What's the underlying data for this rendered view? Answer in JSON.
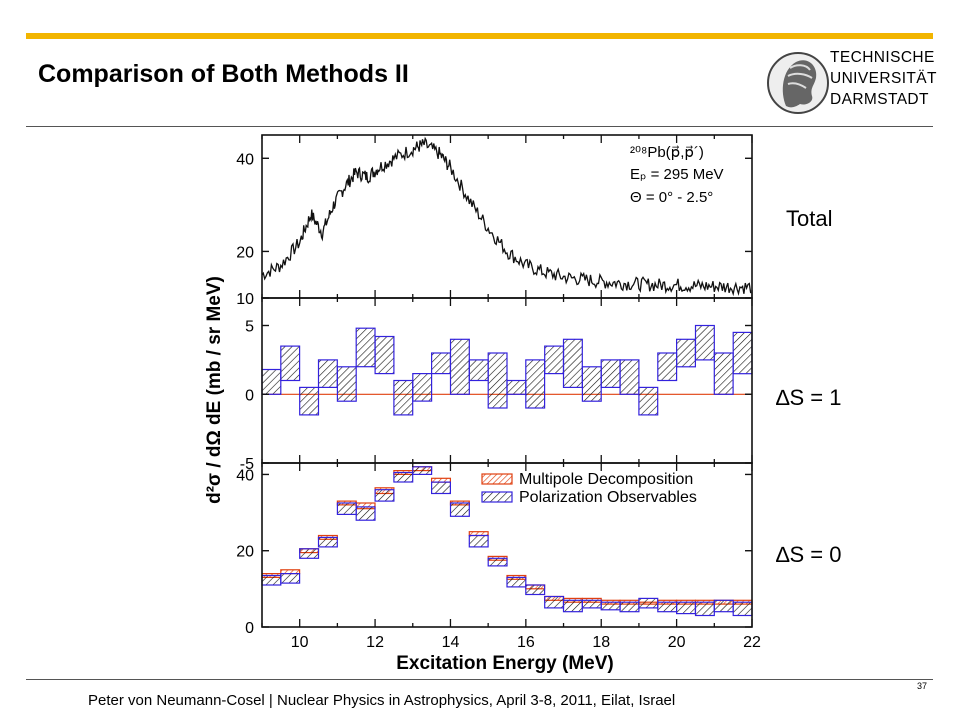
{
  "slide": {
    "title": "Comparison of Both Methods II",
    "footer": "Peter von Neumann-Cosel | Nuclear Physics in Astrophysics, April 3-8, 2011, Eilat, Israel",
    "page_number": "37",
    "accent_color": "#f2b500"
  },
  "logo": {
    "line1": "TECHNISCHE",
    "line2": "UNIVERSITÄT",
    "line3": "DARMSTADT"
  },
  "labels": {
    "total": "Total",
    "ds1": "∆S = 1",
    "ds0": "∆S = 0"
  },
  "figure": {
    "ylabel": "d²σ / dΩ dE (mb / sr MeV)",
    "xlabel": "Excitation Energy (MeV)",
    "reaction": "²⁰⁸Pb(p⃗,p⃗´)",
    "energy": "Eₚ = 295 MeV",
    "angle": "Θ = 0° - 2.5°",
    "legend": [
      "Multipole Decomposition",
      "Polarization Observables"
    ]
  },
  "chart_data": [
    {
      "type": "line",
      "panel": "Total",
      "x_range": [
        9,
        22
      ],
      "ylim": [
        10,
        45
      ],
      "y_ticks": [
        10,
        20,
        40
      ],
      "x": [
        9.0,
        9.5,
        10.0,
        10.3,
        10.6,
        10.9,
        11.2,
        11.5,
        11.8,
        12.1,
        12.5,
        13.0,
        13.3,
        13.7,
        14.0,
        14.5,
        15.0,
        15.5,
        16.0,
        16.5,
        17.0,
        17.5,
        18.0,
        18.5,
        19.0,
        19.5,
        20.0,
        20.5,
        21.0,
        21.5,
        22.0
      ],
      "y": [
        15,
        17,
        22,
        28,
        24,
        30,
        34,
        37,
        36,
        38,
        40,
        42,
        43,
        41,
        38,
        31,
        25,
        20,
        17,
        15.5,
        14.5,
        14,
        13.5,
        13.2,
        13,
        12.8,
        12.8,
        12.6,
        12.5,
        12.4,
        12.3
      ]
    },
    {
      "type": "bar",
      "panel": "∆S = 1",
      "x_range": [
        9,
        22
      ],
      "ylim": [
        -5,
        7
      ],
      "y_ticks": [
        -5,
        0,
        5
      ],
      "bin_edges": [
        9.0,
        9.5,
        10.0,
        10.5,
        11.0,
        11.5,
        12.0,
        12.5,
        13.0,
        13.5,
        14.0,
        14.5,
        15.0,
        15.5,
        16.0,
        16.5,
        17.0,
        17.5,
        18.0,
        18.5,
        19.0,
        19.5,
        20.0,
        20.5,
        21.0,
        21.5,
        22.0
      ],
      "series": [
        {
          "name": "Multipole Decomposition",
          "values": [
            0.0,
            0.0,
            0.0,
            0.0,
            0.0,
            0.0,
            0.0,
            0.0,
            0.0,
            0.0,
            0.0,
            0.0,
            0.0,
            0.0,
            0.0,
            0.0,
            0.0,
            0.0,
            0.0,
            0.0,
            0.0,
            0.0,
            0.0,
            0.0,
            0.0,
            0.0
          ]
        },
        {
          "name": "Polarization Observables",
          "lower": [
            0.0,
            1.0,
            -1.5,
            0.5,
            -0.5,
            2.0,
            1.5,
            -1.5,
            -0.5,
            1.5,
            0.0,
            1.0,
            -1.0,
            0.0,
            -1.0,
            1.5,
            0.5,
            -0.5,
            0.5,
            0.0,
            -1.5,
            1.0,
            2.0,
            2.5,
            0.0,
            1.5
          ],
          "upper": [
            1.8,
            3.5,
            0.5,
            2.5,
            2.0,
            4.8,
            4.2,
            1.0,
            1.5,
            3.0,
            4.0,
            2.5,
            3.0,
            1.0,
            2.5,
            3.5,
            4.0,
            2.0,
            2.5,
            2.5,
            0.5,
            3.0,
            4.0,
            5.0,
            3.0,
            4.5
          ]
        }
      ]
    },
    {
      "type": "bar",
      "panel": "∆S = 0",
      "x_range": [
        9,
        22
      ],
      "ylim": [
        0,
        43
      ],
      "y_ticks": [
        0,
        20,
        40
      ],
      "bin_edges": [
        9.0,
        9.5,
        10.0,
        10.5,
        11.0,
        11.5,
        12.0,
        12.5,
        13.0,
        13.5,
        14.0,
        14.5,
        15.0,
        15.5,
        16.0,
        16.5,
        17.0,
        17.5,
        18.0,
        18.5,
        19.0,
        19.5,
        20.0,
        20.5,
        21.0,
        21.5,
        22.0
      ],
      "series": [
        {
          "name": "Multipole Decomposition",
          "lower": [
            13.0,
            14.0,
            19.5,
            23.0,
            32.0,
            31.0,
            35.0,
            40.0,
            41.0,
            38.0,
            32.0,
            24.0,
            17.5,
            12.5,
            10.0,
            7.0,
            6.5,
            6.5,
            6.0,
            6.0,
            6.0,
            6.0,
            6.0,
            6.0,
            6.0,
            6.0
          ],
          "upper": [
            14.0,
            15.0,
            20.5,
            24.0,
            33.0,
            32.5,
            36.5,
            41.0,
            42.0,
            39.0,
            33.0,
            25.0,
            18.5,
            13.5,
            11.0,
            8.0,
            7.5,
            7.5,
            7.0,
            7.0,
            6.5,
            7.0,
            7.0,
            7.0,
            7.0,
            7.0
          ]
        },
        {
          "name": "Polarization Observables",
          "lower": [
            11.0,
            11.5,
            18.0,
            21.0,
            29.5,
            28.0,
            33.0,
            38.0,
            40.0,
            35.0,
            29.0,
            21.0,
            16.0,
            10.5,
            8.5,
            5.0,
            4.0,
            5.0,
            4.5,
            4.0,
            5.0,
            4.0,
            3.5,
            3.0,
            4.0,
            3.0
          ],
          "upper": [
            13.5,
            14.0,
            20.5,
            23.5,
            32.5,
            31.5,
            36.0,
            40.5,
            42.0,
            38.0,
            32.5,
            24.0,
            18.0,
            13.0,
            11.0,
            8.0,
            7.0,
            7.0,
            6.5,
            6.5,
            7.5,
            6.5,
            6.5,
            6.5,
            7.0,
            6.5
          ]
        }
      ]
    }
  ]
}
